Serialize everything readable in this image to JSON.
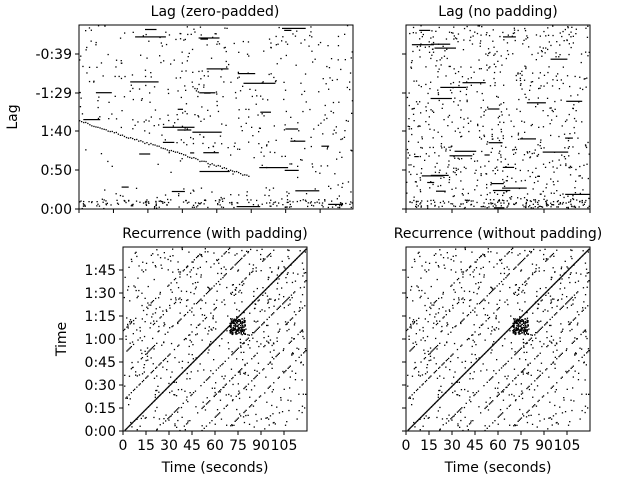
{
  "figure": {
    "background": "#ffffff",
    "ink_color": "#000000"
  },
  "chart_data": [
    {
      "type": "heatmap",
      "title": "Lag (zero-padded)",
      "xlabel": "",
      "ylabel": "Lag",
      "xticks_shown": false,
      "yticks": [
        "-0:39",
        "-1:29",
        "1:40",
        "0:50",
        "0:00"
      ],
      "ytick_values_seconds": [
        -39,
        -89,
        100,
        50,
        0
      ],
      "description_binary": true,
      "density": 0.012,
      "seed": 11,
      "structures": [
        "horizontal lag bands",
        "empty upper-left triangle boundary"
      ]
    },
    {
      "type": "heatmap",
      "title": "Lag (no padding)",
      "xlabel": "",
      "ylabel": "",
      "xticks_shown": false,
      "yticks_shown": false,
      "description_binary": true,
      "density": 0.022,
      "seed": 23,
      "structures": [
        "horizontal lag bands",
        "scattered dots"
      ]
    },
    {
      "type": "heatmap",
      "title": "Recurrence (with padding)",
      "xlabel": "Time (seconds)",
      "ylabel": "Time",
      "xticks": [
        "0",
        "15",
        "30",
        "45",
        "60",
        "75",
        "90",
        "105"
      ],
      "xtick_values_seconds": [
        0,
        15,
        30,
        45,
        60,
        75,
        90,
        105
      ],
      "yticks": [
        "0:00",
        "0:15",
        "0:30",
        "0:45",
        "1:00",
        "1:15",
        "1:30",
        "1:45"
      ],
      "ytick_values_seconds": [
        0,
        15,
        30,
        45,
        60,
        75,
        90,
        105
      ],
      "xlim": [
        0,
        120
      ],
      "ylim": [
        0,
        120
      ],
      "description_binary": true,
      "density": 0.018,
      "seed": 37,
      "structures": [
        "main diagonal",
        "off-diagonal repetition stripes"
      ]
    },
    {
      "type": "heatmap",
      "title": "Recurrence (without padding)",
      "xlabel": "Time (seconds)",
      "ylabel": "",
      "xticks": [
        "0",
        "15",
        "30",
        "45",
        "60",
        "75",
        "90",
        "105"
      ],
      "xtick_values_seconds": [
        0,
        15,
        30,
        45,
        60,
        75,
        90,
        105
      ],
      "yticks_shown": false,
      "xlim": [
        0,
        120
      ],
      "ylim": [
        0,
        120
      ],
      "description_binary": true,
      "density": 0.018,
      "seed": 37,
      "structures": [
        "main diagonal",
        "off-diagonal repetition stripes"
      ]
    }
  ]
}
